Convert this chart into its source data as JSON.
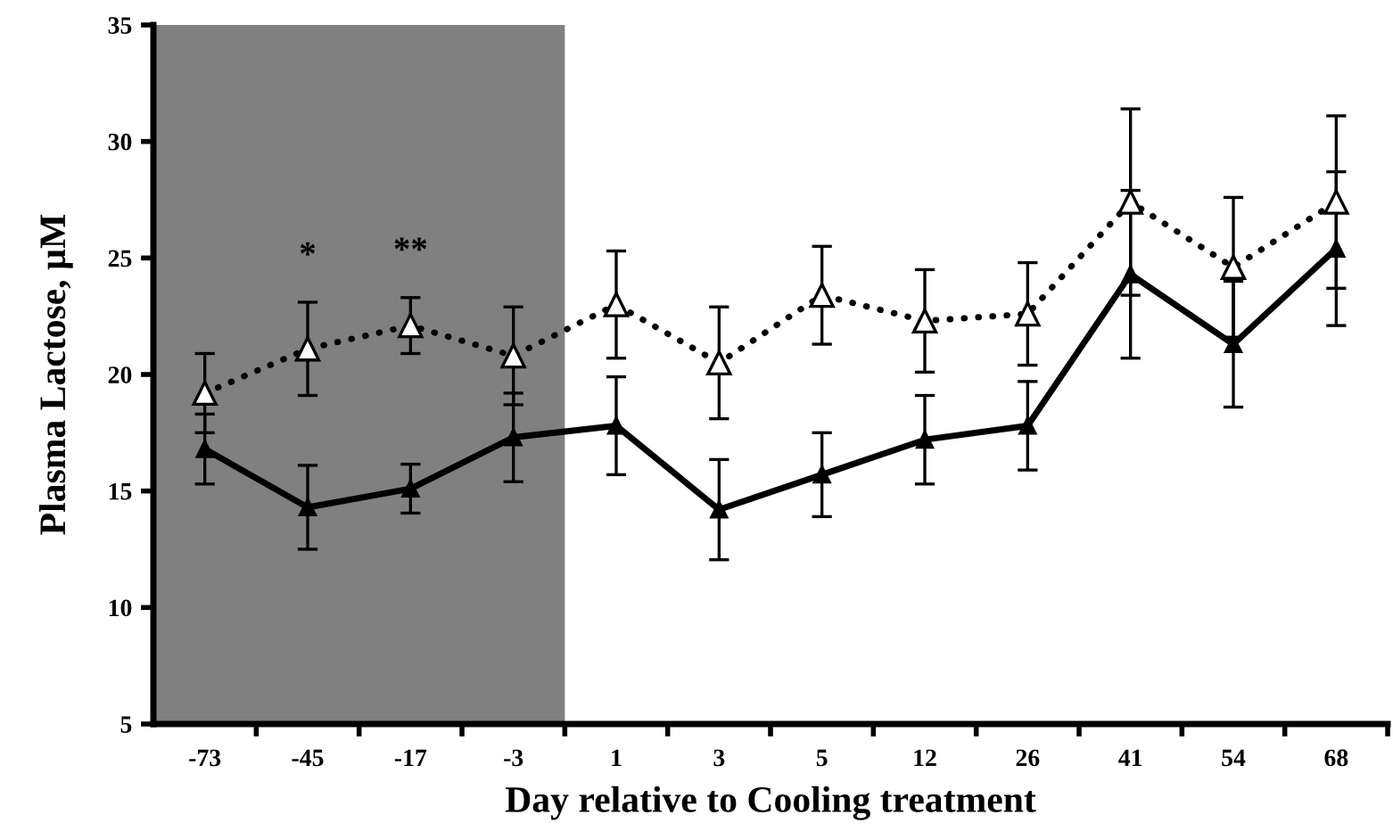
{
  "chart_data": {
    "type": "line",
    "xlabel": "Day relative to Cooling treatment",
    "ylabel": "Plasma Lactose, µM",
    "categories": [
      "-73",
      "-45",
      "-17",
      "-3",
      "1",
      "3",
      "5",
      "12",
      "26",
      "41",
      "54",
      "68"
    ],
    "series": [
      {
        "color": "#000000",
        "line_style": "dotted",
        "marker": "triangle",
        "values": [
          19.2,
          21.1,
          22.1,
          20.8,
          23.0,
          20.5,
          23.4,
          22.3,
          22.6,
          27.4,
          24.6,
          27.4
        ],
        "errors": [
          1.7,
          2.0,
          1.2,
          2.1,
          2.3,
          2.4,
          2.1,
          2.2,
          2.2,
          4.0,
          3.0,
          3.7
        ]
      },
      {
        "color": "#000000",
        "line_style": "solid",
        "marker": "triangle",
        "values": [
          16.8,
          14.3,
          15.1,
          17.3,
          17.8,
          14.2,
          15.7,
          17.2,
          17.8,
          24.3,
          21.3,
          25.4
        ],
        "errors": [
          1.5,
          1.8,
          1.05,
          1.9,
          2.1,
          2.15,
          1.8,
          1.9,
          1.9,
          3.6,
          2.7,
          3.3
        ]
      }
    ],
    "ylim": [
      5,
      35
    ],
    "yticks": [
      5,
      10,
      15,
      20,
      25,
      30,
      35
    ],
    "bands": [
      {
        "axis": "x",
        "from": "-73",
        "to": "-3",
        "color": "#808080"
      }
    ],
    "annotations": [
      "*",
      "**"
    ],
    "grid": false,
    "legend": false
  }
}
